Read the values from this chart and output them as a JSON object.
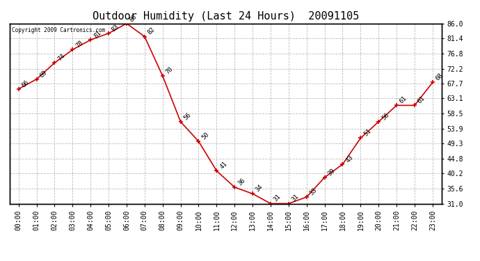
{
  "title": "Outdoor Humidity (Last 24 Hours)  20091105",
  "copyright_text": "Copyright 2009 Cartronics.com",
  "hours": [
    0,
    1,
    2,
    3,
    4,
    5,
    6,
    7,
    8,
    9,
    10,
    11,
    12,
    13,
    14,
    15,
    16,
    17,
    18,
    19,
    20,
    21,
    22,
    23
  ],
  "x_labels": [
    "00:00",
    "01:00",
    "02:00",
    "03:00",
    "04:00",
    "05:00",
    "06:00",
    "07:00",
    "08:00",
    "09:00",
    "10:00",
    "11:00",
    "12:00",
    "13:00",
    "14:00",
    "15:00",
    "16:00",
    "17:00",
    "18:00",
    "19:00",
    "20:00",
    "21:00",
    "22:00",
    "23:00"
  ],
  "values": [
    66,
    69,
    74,
    78,
    81,
    83,
    86,
    82,
    70,
    56,
    50,
    41,
    36,
    34,
    31,
    31,
    33,
    39,
    43,
    51,
    56,
    61,
    61,
    68
  ],
  "line_color": "#cc0000",
  "marker_color": "#cc0000",
  "background_color": "#ffffff",
  "grid_color": "#bbbbbb",
  "grid_style": "--",
  "ylim": [
    31.0,
    86.0
  ],
  "yticks": [
    31.0,
    35.6,
    40.2,
    44.8,
    49.3,
    53.9,
    58.5,
    63.1,
    67.7,
    72.2,
    76.8,
    81.4,
    86.0
  ],
  "title_fontsize": 11,
  "tick_fontsize": 7,
  "annotation_fontsize": 6.5
}
